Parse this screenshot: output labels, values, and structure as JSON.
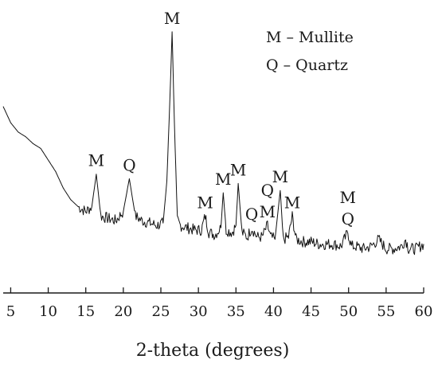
{
  "chart_data": {
    "type": "line",
    "xlabel": "2-theta (degrees)",
    "ylabel": "",
    "xlim": [
      4,
      60
    ],
    "x_ticks": [
      5,
      10,
      15,
      20,
      25,
      30,
      35,
      40,
      45,
      50,
      55,
      60
    ],
    "grid": false,
    "legend": {
      "placement": "top-right",
      "entries": [
        "M – Mullite",
        "Q – Quartz"
      ]
    },
    "series": [
      {
        "x": [
          4,
          5,
          6,
          7,
          8,
          9,
          10,
          11,
          12,
          13,
          14,
          15,
          15.8,
          16.4,
          17,
          18,
          19,
          20,
          20.8,
          21.6,
          22.5,
          23.5,
          24.5,
          25.3,
          25.8,
          26.2,
          26.5,
          26.8,
          27.2,
          27.6,
          28.5,
          29.5,
          30.4,
          30.9,
          31.4,
          32.2,
          33.0,
          33.3,
          33.7,
          34.5,
          35.0,
          35.3,
          35.8,
          36.5,
          37.1,
          37.8,
          38.5,
          39.2,
          39.6,
          40.2,
          40.9,
          41.3,
          42.0,
          42.5,
          43.0,
          44,
          45,
          46,
          47,
          48,
          49,
          49.9,
          50.4,
          51,
          52,
          53,
          54,
          55,
          56,
          57,
          57.6,
          58,
          59,
          60
        ],
        "y": [
          0.67,
          0.6,
          0.56,
          0.54,
          0.51,
          0.49,
          0.44,
          0.39,
          0.32,
          0.27,
          0.24,
          0.22,
          0.24,
          0.38,
          0.2,
          0.19,
          0.18,
          0.22,
          0.36,
          0.2,
          0.18,
          0.17,
          0.16,
          0.17,
          0.35,
          0.7,
          0.99,
          0.6,
          0.18,
          0.16,
          0.15,
          0.14,
          0.14,
          0.2,
          0.13,
          0.12,
          0.15,
          0.3,
          0.14,
          0.13,
          0.16,
          0.34,
          0.13,
          0.11,
          0.15,
          0.11,
          0.11,
          0.16,
          0.11,
          0.1,
          0.31,
          0.1,
          0.11,
          0.2,
          0.1,
          0.09,
          0.09,
          0.08,
          0.08,
          0.08,
          0.07,
          0.13,
          0.07,
          0.07,
          0.06,
          0.07,
          0.1,
          0.06,
          0.06,
          0.07,
          0.1,
          0.06,
          0.06,
          0.08
        ]
      }
    ],
    "annotations": [
      {
        "text": "M",
        "x": 16.4,
        "y": 0.38
      },
      {
        "text": "Q",
        "x": 20.8,
        "y": 0.36
      },
      {
        "text": "M",
        "x": 26.5,
        "y": 0.99
      },
      {
        "text": "M",
        "x": 30.9,
        "y": 0.2
      },
      {
        "text": "M",
        "x": 33.3,
        "y": 0.3
      },
      {
        "text": "M",
        "x": 35.3,
        "y": 0.34
      },
      {
        "text": "Q",
        "x": 37.1,
        "y": 0.15
      },
      {
        "text": "M",
        "x": 39.2,
        "y": 0.16
      },
      {
        "text": "Q",
        "x": 39.2,
        "y": 0.16
      },
      {
        "text": "M",
        "x": 40.9,
        "y": 0.31
      },
      {
        "text": "M",
        "x": 42.5,
        "y": 0.2
      },
      {
        "text": "Q",
        "x": 49.9,
        "y": 0.13
      },
      {
        "text": "M",
        "x": 49.9,
        "y": 0.13
      }
    ]
  }
}
